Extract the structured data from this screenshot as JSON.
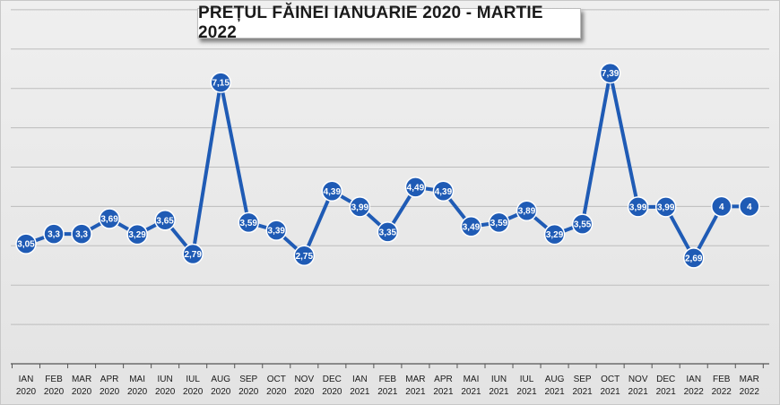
{
  "chart_data": {
    "type": "line",
    "title": "PREȚUL FĂINEI IANUARIE 2020 - MARTIE 2022",
    "xlabel": "",
    "ylabel": "",
    "ylim": [
      0,
      9
    ],
    "grid": true,
    "legend": "none",
    "line_color": "#1f5bb5",
    "marker_color": "#1f5bb5",
    "categories": [
      {
        "month": "IAN",
        "year": "2020"
      },
      {
        "month": "FEB",
        "year": "2020"
      },
      {
        "month": "MAR",
        "year": "2020"
      },
      {
        "month": "APR",
        "year": "2020"
      },
      {
        "month": "MAI",
        "year": "2020"
      },
      {
        "month": "IUN",
        "year": "2020"
      },
      {
        "month": "IUL",
        "year": "2020"
      },
      {
        "month": "AUG",
        "year": "2020"
      },
      {
        "month": "SEP",
        "year": "2020"
      },
      {
        "month": "OCT",
        "year": "2020"
      },
      {
        "month": "NOV",
        "year": "2020"
      },
      {
        "month": "DEC",
        "year": "2020"
      },
      {
        "month": "IAN",
        "year": "2021"
      },
      {
        "month": "FEB",
        "year": "2021"
      },
      {
        "month": "MAR",
        "year": "2021"
      },
      {
        "month": "APR",
        "year": "2021"
      },
      {
        "month": "MAI",
        "year": "2021"
      },
      {
        "month": "IUN",
        "year": "2021"
      },
      {
        "month": "IUL",
        "year": "2021"
      },
      {
        "month": "AUG",
        "year": "2021"
      },
      {
        "month": "SEP",
        "year": "2021"
      },
      {
        "month": "OCT",
        "year": "2021"
      },
      {
        "month": "NOV",
        "year": "2021"
      },
      {
        "month": "DEC",
        "year": "2021"
      },
      {
        "month": "IAN",
        "year": "2022"
      },
      {
        "month": "FEB",
        "year": "2022"
      },
      {
        "month": "MAR",
        "year": "2022"
      }
    ],
    "values": [
      3.05,
      3.3,
      3.3,
      3.69,
      3.29,
      3.65,
      2.79,
      7.15,
      3.59,
      3.39,
      2.75,
      4.39,
      3.99,
      3.35,
      4.49,
      4.39,
      3.49,
      3.59,
      3.89,
      3.29,
      3.55,
      7.39,
      3.99,
      3.99,
      2.69,
      4,
      4
    ],
    "data_labels": [
      "3,05",
      "3,3",
      "3,3",
      "3,69",
      "3,29",
      "3,65",
      "2,79",
      "7,15",
      "3,59",
      "3,39",
      "2,75",
      "4,39",
      "3,99",
      "3,35",
      "4,49",
      "4,39",
      "3,49",
      "3,59",
      "3,89",
      "3,29",
      "3,55",
      "7,39",
      "3,99",
      "3,99",
      "2,69",
      "4",
      "4"
    ]
  }
}
